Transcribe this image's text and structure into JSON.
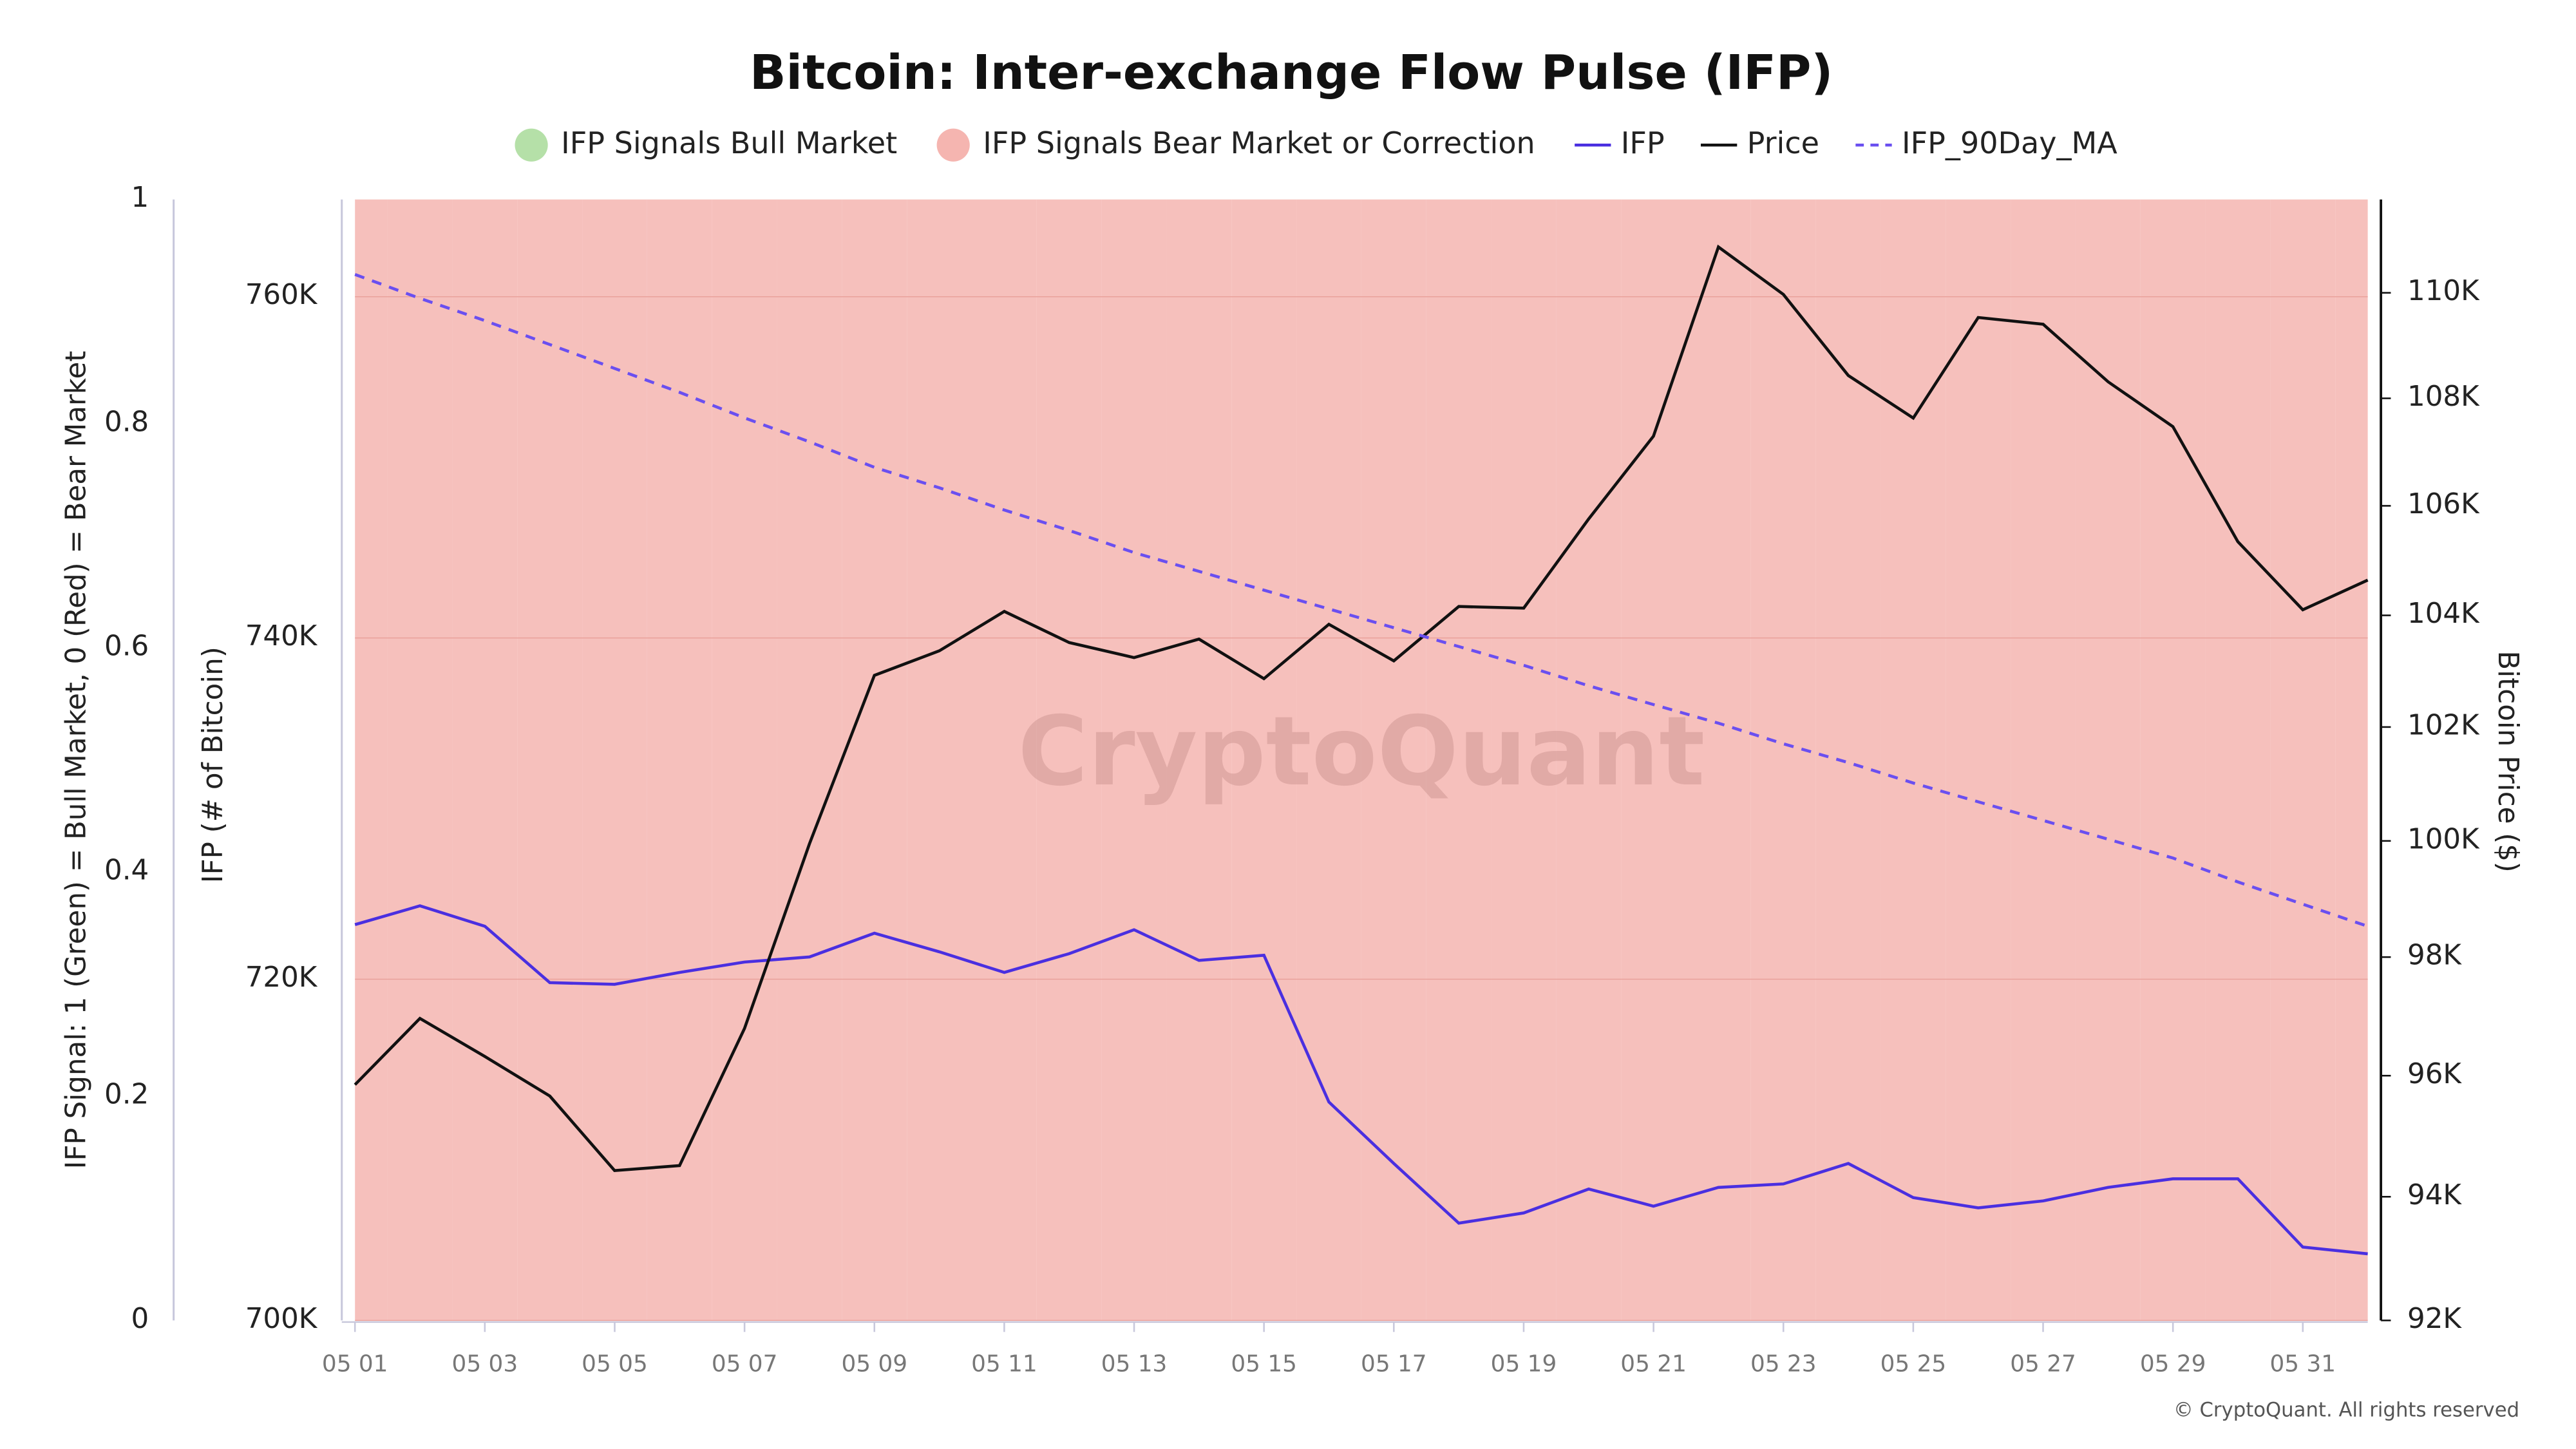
{
  "chart_data": {
    "type": "line",
    "title": "Bitcoin: Inter-exchange Flow Pulse (IFP)",
    "categories": [
      "05 01",
      null,
      "05 03",
      null,
      "05 05",
      null,
      "05 07",
      null,
      "05 09",
      null,
      "05 11",
      null,
      "05 13",
      null,
      "05 15",
      null,
      "05 17",
      null,
      "05 19",
      null,
      "05 21",
      null,
      "05 23",
      null,
      "05 25",
      null,
      "05 27",
      null,
      "05 29",
      null,
      "05 31",
      null
    ],
    "signal": {
      "axis_label": "IFP Signal: 1 (Green) = Bull Market, 0 (Red) = Bear Market",
      "ylim": [
        0,
        1
      ],
      "yticks": [
        0,
        0.2,
        0.4,
        0.6,
        0.8,
        1
      ],
      "legend": [
        {
          "name": "IFP Signals Bull Market",
          "color": "#b5e0a8",
          "value": 1
        },
        {
          "name": "IFP Signals Bear Market or Correction",
          "color": "#f5b5b0",
          "value": 0
        }
      ],
      "values": [
        0,
        0,
        0,
        0,
        0,
        0,
        0,
        0,
        0,
        0,
        0,
        0,
        0,
        0,
        0,
        0,
        0,
        0,
        0,
        0,
        0,
        0,
        0,
        0,
        0,
        0,
        0,
        0,
        0,
        0,
        0,
        0
      ]
    },
    "ylabel": "IFP (# of Bitcoin)",
    "ylim": [
      700000,
      765700
    ],
    "yticks": [
      {
        "value": 700000,
        "label": "700K"
      },
      {
        "value": 720000,
        "label": "720K"
      },
      {
        "value": 740000,
        "label": "740K"
      },
      {
        "value": 760000,
        "label": "760K"
      }
    ],
    "y2label": "Bitcoin Price ($)",
    "y2lim": [
      92000,
      111800
    ],
    "y2log": true,
    "y2ticks": [
      {
        "value": 92000,
        "label": "92K"
      },
      {
        "value": 94000,
        "label": "94K"
      },
      {
        "value": 96000,
        "label": "96K"
      },
      {
        "value": 98000,
        "label": "98K"
      },
      {
        "value": 100000,
        "label": "100K"
      },
      {
        "value": 102000,
        "label": "102K"
      },
      {
        "value": 104000,
        "label": "104K"
      },
      {
        "value": 106000,
        "label": "106K"
      },
      {
        "value": 108000,
        "label": "108K"
      },
      {
        "value": 110000,
        "label": "110K"
      }
    ],
    "grid": true,
    "series": [
      {
        "name": "IFP",
        "color": "#4a2fe0",
        "dash": false,
        "axis": "y",
        "values": [
          723200,
          724300,
          723100,
          719800,
          719700,
          720400,
          721000,
          721300,
          722700,
          721600,
          720400,
          721500,
          722900,
          721100,
          721400,
          712800,
          709200,
          705700,
          706300,
          707700,
          706700,
          707800,
          708000,
          709200,
          707200,
          706600,
          707000,
          707800,
          708300,
          708300,
          704300,
          703900
        ]
      },
      {
        "name": "Price",
        "color": "#111111",
        "dash": false,
        "axis": "y2",
        "values": [
          95850,
          96960,
          96320,
          95660,
          94430,
          94510,
          96790,
          99950,
          102920,
          103360,
          104070,
          103510,
          103240,
          103570,
          102860,
          103840,
          103180,
          104160,
          104130,
          105760,
          107290,
          110880,
          109970,
          108430,
          107630,
          109530,
          109400,
          108310,
          107470,
          105340,
          104100,
          104640
        ]
      },
      {
        "name": "IFP_90Day_MA",
        "color": "#6a4ff0",
        "dash": true,
        "axis": "y",
        "values": [
          761300,
          759900,
          758600,
          757200,
          755800,
          754400,
          752900,
          751500,
          750000,
          748800,
          747500,
          746300,
          745000,
          743900,
          742800,
          741700,
          740600,
          739500,
          738400,
          737200,
          736100,
          735000,
          733800,
          732700,
          731500,
          730400,
          729300,
          728200,
          727100,
          725700,
          724400,
          723100
        ]
      }
    ],
    "watermark": "CryptoQuant",
    "credit": "© CryptoQuant. All rights reserved"
  }
}
